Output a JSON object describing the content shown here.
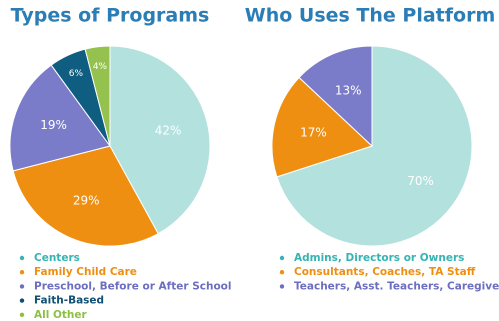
{
  "chart_data": [
    {
      "type": "pie",
      "title": "Types of Programs",
      "categories": [
        "Centers",
        "Family Child Care",
        "Preschool, Before or After School",
        "Faith-Based",
        "All Other"
      ],
      "values": [
        42,
        29,
        19,
        6,
        4
      ],
      "value_labels": [
        "42%",
        "29%",
        "19%",
        "6%",
        "4%"
      ],
      "colors": [
        "#b3e1de",
        "#ee8f12",
        "#7b7cc9",
        "#0f5d80",
        "#95c24f"
      ],
      "label_colors": [
        "#36b3b3",
        "#ee8f12",
        "#6d6ec0",
        "#0f4f74",
        "#8cbf45"
      ]
    },
    {
      "type": "pie",
      "title": "Who Uses The Platform",
      "categories": [
        "Admins, Directors or Owners",
        "Consultants, Coaches, TA Staff",
        "Teachers, Asst. Teachers, Caregivers"
      ],
      "values": [
        70,
        17,
        13
      ],
      "value_labels": [
        "70%",
        "17%",
        "13%"
      ],
      "colors": [
        "#b3e1de",
        "#ee8f12",
        "#7b7cc9"
      ],
      "label_colors": [
        "#36b3b3",
        "#ee8f12",
        "#6d6ec0"
      ]
    }
  ]
}
